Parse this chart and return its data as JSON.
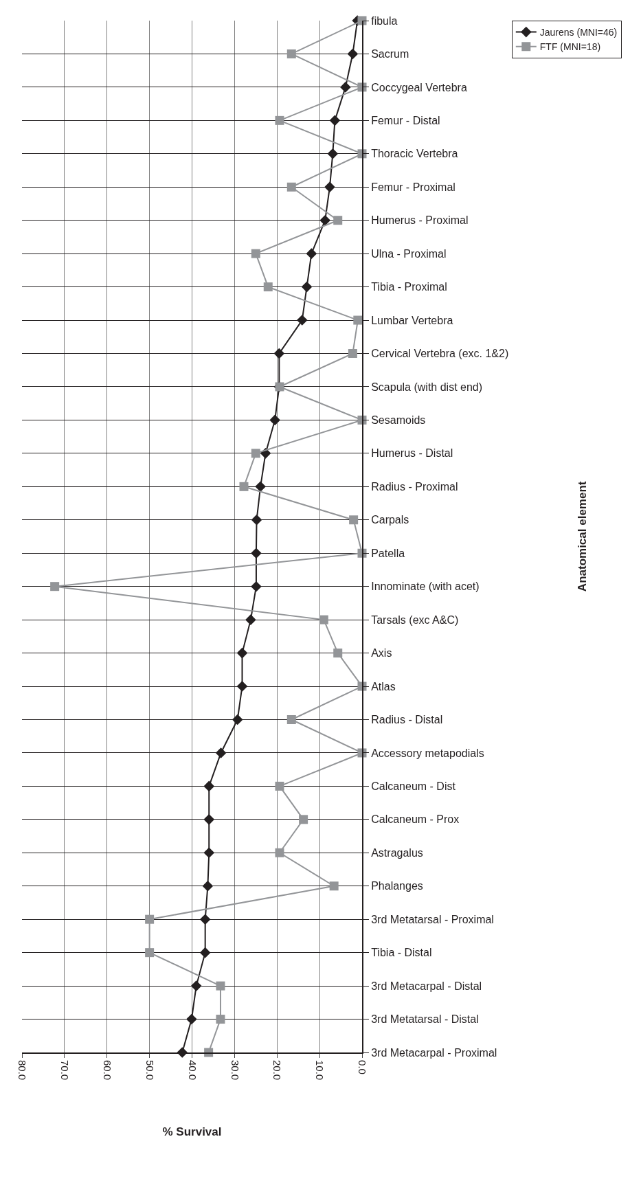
{
  "chart_data": {
    "type": "line",
    "orientation": "horizontal",
    "xlabel": "% Survival",
    "annotations": [
      "Anatomical element"
    ],
    "categories": [
      "fibula",
      "Sacrum",
      "Coccygeal Vertebra",
      "Femur - Distal",
      "Thoracic Vertebra",
      "Femur - Proximal",
      "Humerus - Proximal",
      "Ulna - Proximal",
      "Tibia - Proximal",
      "Lumbar Vertebra",
      "Cervical Vertebra (exc. 1&2)",
      "Scapula (with dist end)",
      "Sesamoids",
      "Humerus - Distal",
      "Radius - Proximal",
      "Carpals",
      "Patella",
      "Innominate (with acet)",
      "Tarsals (exc A&C)",
      "Axis",
      "Atlas",
      "Radius - Distal",
      "Accessory metapodials",
      "Calcaneum - Dist",
      "Calcaneum - Prox",
      "Astragalus",
      "Phalanges",
      "3rd Metatarsal - Proximal",
      "Tibia - Distal",
      "3rd Metacarpal - Distal",
      "3rd Metatarsal - Distal",
      "3rd Metacarpal - Proximal"
    ],
    "series": [
      {
        "name": "Jaurens (MNI=46)",
        "color": "#231f20",
        "marker": "diamond",
        "values": [
          1.1,
          2.2,
          3.9,
          6.4,
          6.9,
          7.6,
          8.7,
          11.9,
          13.0,
          14.1,
          19.5,
          19.5,
          20.5,
          22.7,
          23.9,
          24.8,
          24.9,
          24.9,
          26.2,
          28.2,
          28.2,
          29.3,
          33.2,
          36.0,
          36.0,
          36.0,
          36.3,
          36.9,
          36.9,
          39.0,
          40.1,
          42.3
        ]
      },
      {
        "name": "FTF (MNI=18)",
        "color": "#939598",
        "marker": "square",
        "values": [
          0,
          16.6,
          0,
          19.4,
          0,
          16.6,
          5.7,
          25.0,
          22.1,
          1.0,
          2.2,
          19.4,
          0,
          25.0,
          27.8,
          2.0,
          0,
          72.3,
          9.0,
          5.7,
          0,
          16.6,
          0,
          19.4,
          13.8,
          19.4,
          6.6,
          50.0,
          50.0,
          33.3,
          33.3,
          36.1
        ]
      }
    ],
    "xlim": [
      80,
      0
    ],
    "xticks": [
      {
        "value": 80,
        "label": "80.0"
      },
      {
        "value": 70,
        "label": "70.0"
      },
      {
        "value": 60,
        "label": "60.0"
      },
      {
        "value": 50,
        "label": "50.0"
      },
      {
        "value": 40,
        "label": "40.0"
      },
      {
        "value": 30,
        "label": "30.0"
      },
      {
        "value": 20,
        "label": "20.0"
      },
      {
        "value": 10,
        "label": "10.0"
      },
      {
        "value": 0,
        "label": "0.0"
      }
    ],
    "grid": true,
    "legend": "top right",
    "line_style": "solid"
  }
}
